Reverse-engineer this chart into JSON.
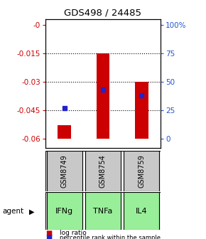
{
  "title": "GDS498 / 24485",
  "categories": [
    "IFNg",
    "TNFa",
    "IL4"
  ],
  "gsm_labels": [
    "GSM8749",
    "GSM8754",
    "GSM8759"
  ],
  "left_ylim": [
    -0.065,
    0.003
  ],
  "left_yticks": [
    0,
    -0.015,
    -0.03,
    -0.045,
    -0.06
  ],
  "left_ytick_labels": [
    "-0",
    "-0.015",
    "-0.03",
    "-0.045",
    "-0.06"
  ],
  "right_ytick_labels": [
    "100%",
    "75",
    "50",
    "25",
    "0"
  ],
  "right_yticks": [
    100,
    75,
    50,
    25,
    0
  ],
  "bar_tops": [
    -0.053,
    -0.015,
    -0.03
  ],
  "bar_bottom": -0.06,
  "percentile_ranks": [
    27,
    43,
    38
  ],
  "bar_color": "#cc0000",
  "blue_color": "#2222cc",
  "gsm_bg": "#c8c8c8",
  "agent_bg": "#99ee99",
  "left_tick_color": "#cc0000",
  "right_tick_color": "#2255cc",
  "dotted_lines": [
    -0.015,
    -0.03,
    -0.045
  ],
  "x_positions": [
    0,
    1,
    2
  ],
  "bar_width": 0.35
}
